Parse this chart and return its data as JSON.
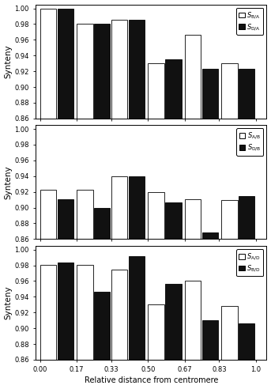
{
  "panels": [
    {
      "legend_labels": [
        "S_{B/A}",
        "S_{D/A}"
      ],
      "ylabel": "Synteny",
      "ylim": [
        0.86,
        1.005
      ],
      "yticks": [
        0.86,
        0.88,
        0.9,
        0.92,
        0.94,
        0.96,
        0.98,
        1.0
      ],
      "white_bars": [
        1.0,
        0.98,
        0.985,
        0.93,
        0.966,
        0.93
      ],
      "black_bars": [
        1.0,
        0.98,
        0.985,
        0.935,
        0.923,
        0.923
      ]
    },
    {
      "legend_labels": [
        "S_{A/B}",
        "S_{D/B}"
      ],
      "ylabel": "Synteny",
      "ylim": [
        0.86,
        1.005
      ],
      "yticks": [
        0.86,
        0.88,
        0.9,
        0.92,
        0.94,
        0.96,
        0.98,
        1.0
      ],
      "white_bars": [
        0.923,
        0.923,
        0.94,
        0.92,
        0.911,
        0.91
      ],
      "black_bars": [
        0.911,
        0.9,
        0.94,
        0.907,
        0.868,
        0.915
      ]
    },
    {
      "legend_labels": [
        "S_{A/D}",
        "S_{B/D}"
      ],
      "ylabel": "Synteny",
      "ylim": [
        0.86,
        1.005
      ],
      "yticks": [
        0.86,
        0.88,
        0.9,
        0.92,
        0.94,
        0.96,
        0.98,
        1.0
      ],
      "white_bars": [
        0.981,
        0.981,
        0.975,
        0.93,
        0.96,
        0.928
      ],
      "black_bars": [
        0.984,
        0.946,
        0.992,
        0.956,
        0.91,
        0.906
      ]
    }
  ],
  "x_positions": [
    0.04,
    0.21,
    0.37,
    0.54,
    0.71,
    0.88
  ],
  "xtick_positions": [
    0.0,
    0.17,
    0.33,
    0.5,
    0.67,
    0.83,
    1.0
  ],
  "xtick_labels": [
    "0.00",
    "0.17",
    "0.33",
    "0.50",
    "0.67",
    "0.83",
    "1.0"
  ],
  "xlabel": "Relative distance from centromere",
  "bar_width": 0.075,
  "bar_gap": 0.005,
  "white_color": "#ffffff",
  "black_color": "#111111",
  "edge_color": "#000000",
  "background_color": "#ffffff",
  "xlim": [
    -0.02,
    1.05
  ]
}
